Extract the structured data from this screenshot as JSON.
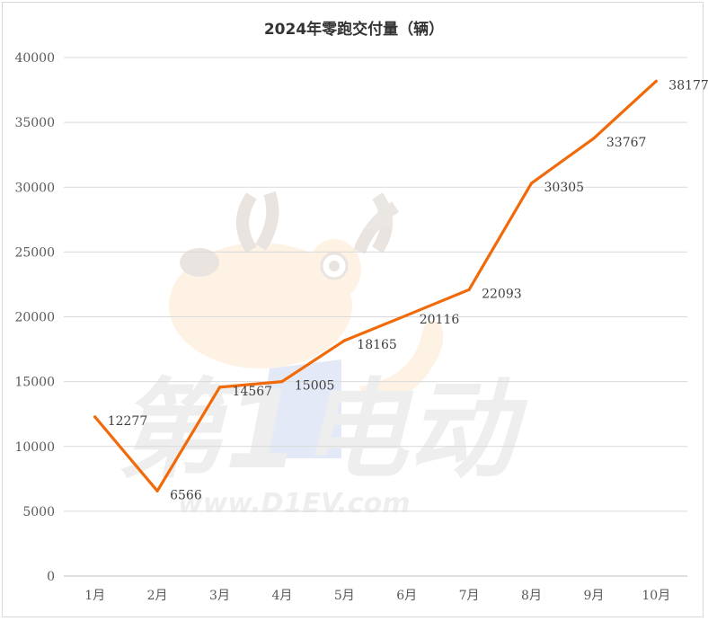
{
  "chart_data": {
    "type": "line",
    "title": "2024年零跑交付量（辆）",
    "categories": [
      "1月",
      "2月",
      "3月",
      "4月",
      "5月",
      "6月",
      "7月",
      "8月",
      "9月",
      "10月"
    ],
    "values": [
      12277,
      6566,
      14567,
      15005,
      18165,
      20116,
      22093,
      30305,
      33767,
      38177
    ],
    "data_labels": [
      "12277",
      "6566",
      "14567",
      "15005",
      "18165",
      "20116",
      "22093",
      "30305",
      "33767",
      "38177"
    ],
    "ylim": [
      0,
      40000
    ],
    "y_ticks": [
      "0",
      "5000",
      "10000",
      "15000",
      "20000",
      "25000",
      "30000",
      "35000",
      "40000"
    ],
    "xlabel": "",
    "ylabel": "",
    "grid": true,
    "legend": "none",
    "line_color": "#F06A0A"
  },
  "watermark": {
    "brand_text": "第1电动",
    "url_text": "www.D1EV.com"
  }
}
